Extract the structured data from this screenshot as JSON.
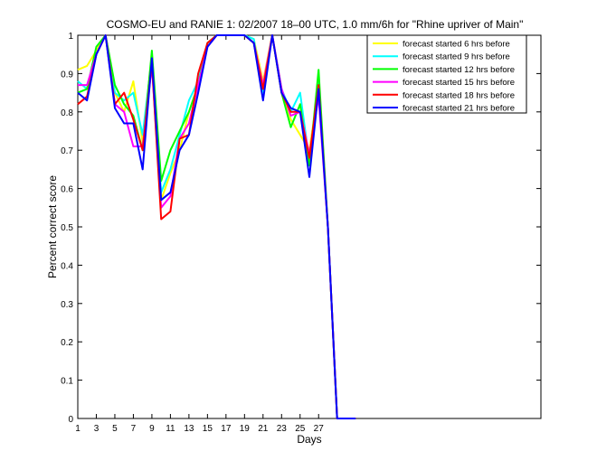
{
  "chart_data": {
    "type": "line",
    "title": "COSMO-EU and RANIE 1: 02/2007 18–00 UTC, 1.0 mm/6h for \"Rhine upriver of Main\"",
    "xlabel": "Days",
    "ylabel": "Percent correct score",
    "xlim": [
      1,
      51
    ],
    "ylim": [
      0,
      1
    ],
    "grid": false,
    "legend_position": "top-right",
    "x_ticks": [
      1,
      3,
      5,
      7,
      9,
      11,
      13,
      15,
      17,
      19,
      21,
      23,
      25,
      27
    ],
    "x_tick_labels": [
      "1",
      "3",
      "5",
      "7",
      "9",
      "11",
      "13",
      "15",
      "17",
      "19",
      "21",
      "23",
      "25",
      "27"
    ],
    "y_ticks": [
      0,
      0.1,
      0.2,
      0.3,
      0.4,
      0.5,
      0.6,
      0.7,
      0.8,
      0.9,
      1
    ],
    "y_tick_labels": [
      "0",
      "0.1",
      "0.2",
      "0.3",
      "0.4",
      "0.5",
      "0.6",
      "0.7",
      "0.8",
      "0.9",
      "1"
    ],
    "x": [
      1,
      2,
      3,
      4,
      5,
      6,
      7,
      8,
      9,
      10,
      11,
      12,
      13,
      14,
      15,
      16,
      17,
      18,
      19,
      20,
      21,
      22,
      23,
      24,
      25,
      26,
      27,
      28,
      29,
      30,
      31
    ],
    "series": [
      {
        "name": "forecast started 6 hrs before",
        "color": "#ffff00",
        "values": [
          0.91,
          0.92,
          0.96,
          1.0,
          0.85,
          0.8,
          0.88,
          0.72,
          0.95,
          0.57,
          0.64,
          0.7,
          0.8,
          0.87,
          0.98,
          1.0,
          1.0,
          1.0,
          1.0,
          0.99,
          0.88,
          1.0,
          0.86,
          0.78,
          0.74,
          0.7,
          0.86,
          0.5,
          0.0,
          0.0,
          0.0
        ]
      },
      {
        "name": "forecast started 9 hrs before",
        "color": "#00ffff",
        "values": [
          0.88,
          0.86,
          0.95,
          1.0,
          0.85,
          0.83,
          0.85,
          0.74,
          0.94,
          0.59,
          0.65,
          0.74,
          0.83,
          0.88,
          0.98,
          1.0,
          1.0,
          1.0,
          1.0,
          0.99,
          0.85,
          1.0,
          0.86,
          0.8,
          0.85,
          0.67,
          0.88,
          0.5,
          0.0,
          0.0,
          0.0
        ]
      },
      {
        "name": "forecast started 12 hrs before",
        "color": "#00ff00",
        "values": [
          0.85,
          0.86,
          0.97,
          1.0,
          0.87,
          0.82,
          0.79,
          0.7,
          0.96,
          0.62,
          0.7,
          0.75,
          0.8,
          0.87,
          0.98,
          1.0,
          1.0,
          1.0,
          1.0,
          0.98,
          0.86,
          1.0,
          0.85,
          0.76,
          0.82,
          0.66,
          0.91,
          0.5,
          0.0,
          0.0,
          0.0
        ]
      },
      {
        "name": "forecast started 15 hrs before",
        "color": "#ff00ff",
        "values": [
          0.87,
          0.87,
          0.95,
          1.0,
          0.82,
          0.8,
          0.71,
          0.71,
          0.92,
          0.55,
          0.58,
          0.73,
          0.77,
          0.87,
          0.97,
          1.0,
          1.0,
          1.0,
          1.0,
          0.98,
          0.87,
          1.0,
          0.86,
          0.79,
          0.8,
          0.69,
          0.84,
          0.5,
          0.0,
          0.0,
          0.0
        ]
      },
      {
        "name": "forecast started 18 hrs before",
        "color": "#ff0000",
        "values": [
          0.82,
          0.84,
          0.95,
          1.0,
          0.82,
          0.85,
          0.78,
          0.7,
          0.93,
          0.52,
          0.54,
          0.73,
          0.74,
          0.9,
          0.98,
          1.0,
          1.0,
          1.0,
          1.0,
          0.98,
          0.86,
          1.0,
          0.85,
          0.8,
          0.8,
          0.68,
          0.87,
          0.5,
          0.0,
          0.0,
          0.0
        ]
      },
      {
        "name": "forecast started 21 hrs before",
        "color": "#0000ff",
        "values": [
          0.85,
          0.83,
          0.95,
          1.0,
          0.81,
          0.77,
          0.77,
          0.65,
          0.94,
          0.57,
          0.59,
          0.7,
          0.74,
          0.85,
          0.97,
          1.0,
          1.0,
          1.0,
          1.0,
          0.98,
          0.83,
          1.0,
          0.85,
          0.81,
          0.8,
          0.63,
          0.86,
          0.5,
          0.0,
          0.0,
          0.0
        ]
      }
    ]
  }
}
